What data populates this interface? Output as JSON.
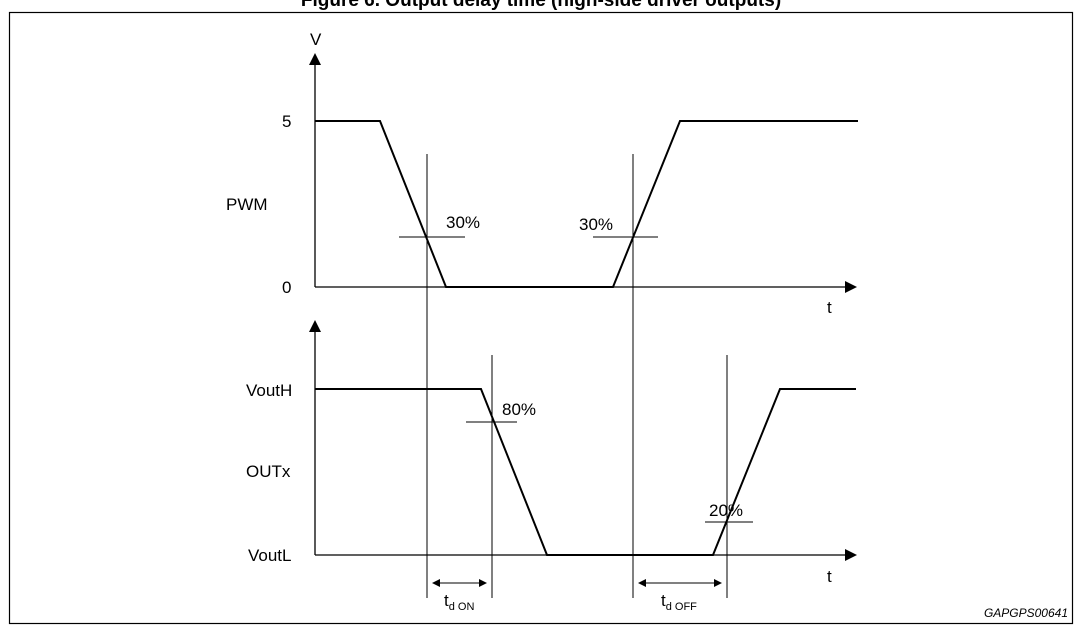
{
  "figure": {
    "title": "Figure 6. Output delay time (high-side driver outputs)",
    "code": "GAPGPS00641"
  },
  "pwm_plot": {
    "y_axis_label": "V",
    "x_axis_label": "t",
    "y_ticks": [
      "5",
      "0"
    ],
    "signal_label": "PWM",
    "thresholds": [
      "30%",
      "30%"
    ]
  },
  "out_plot": {
    "x_axis_label": "t",
    "y_ticks": [
      "VoutH",
      "VoutL"
    ],
    "signal_label": "OUTx",
    "thresholds": [
      "80%",
      "20%"
    ]
  },
  "timing": {
    "td_on": {
      "main": "t",
      "sub": "d ON"
    },
    "td_off": {
      "main": "t",
      "sub": "d OFF"
    }
  }
}
